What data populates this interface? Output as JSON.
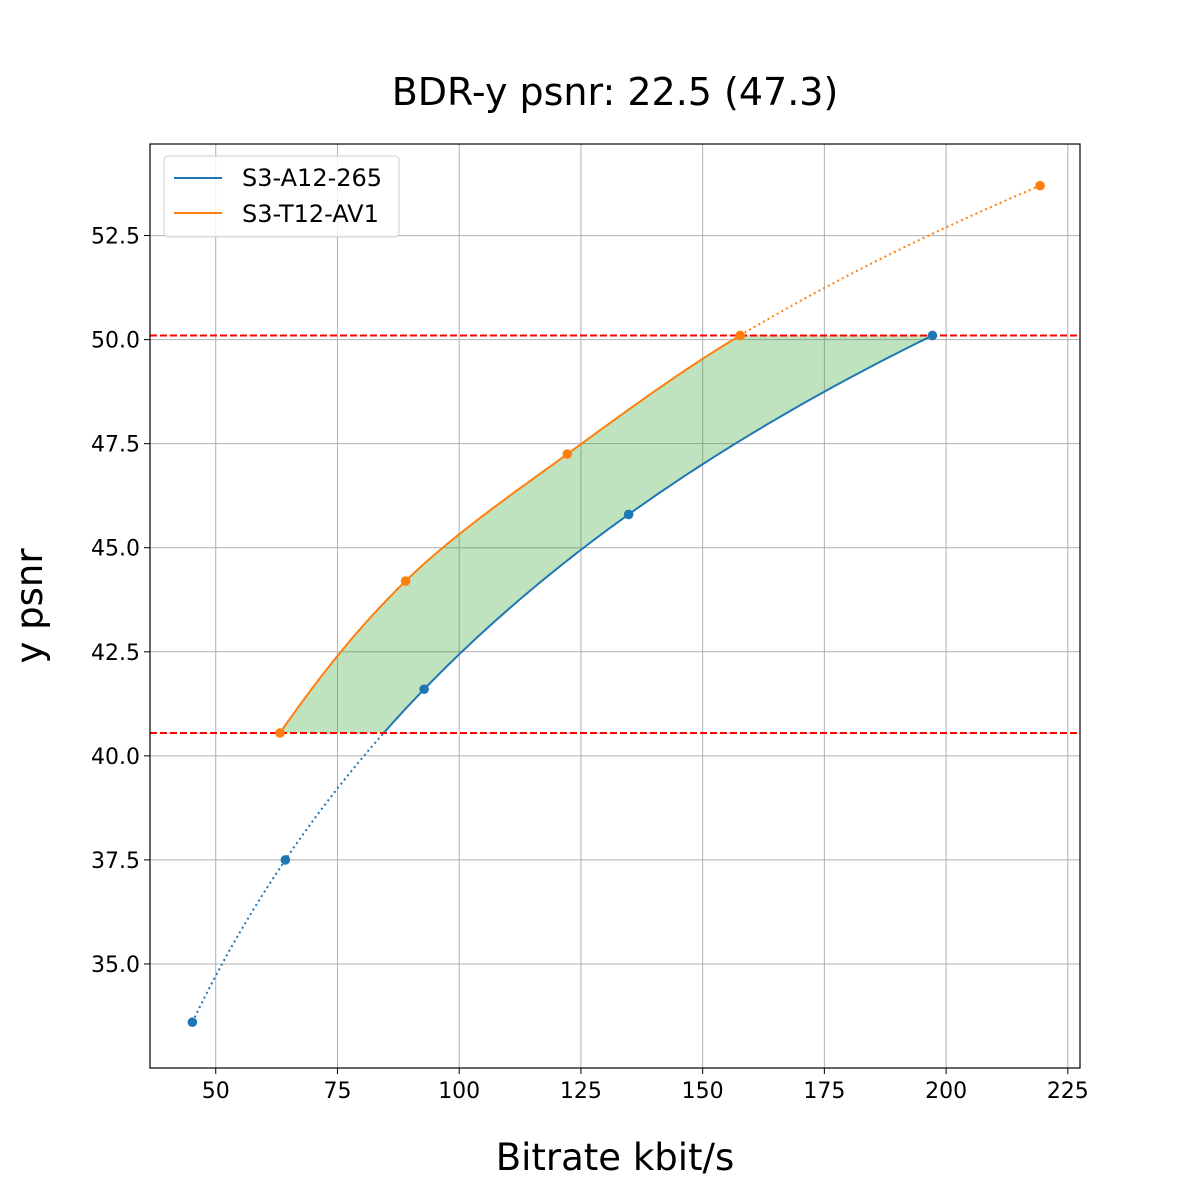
{
  "chart_data": {
    "type": "line",
    "title": "BDR-y psnr: 22.5 (47.3)",
    "xlabel": "Bitrate kbit/s",
    "ylabel": "y psnr",
    "xlim": [
      36.5,
      227.5
    ],
    "ylim": [
      32.5,
      54.7
    ],
    "xticks": [
      50,
      75,
      100,
      125,
      150,
      175,
      200,
      225
    ],
    "yticks": [
      35.0,
      37.5,
      40.0,
      42.5,
      45.0,
      47.5,
      50.0,
      52.5
    ],
    "grid": true,
    "legend_position": "top-left",
    "series": [
      {
        "name": "S3-A12-265",
        "color": "#1f77b4",
        "x": [
          45.2,
          64.3,
          92.8,
          134.8,
          197.2
        ],
        "y": [
          33.6,
          37.5,
          41.6,
          45.8,
          50.1
        ]
      },
      {
        "name": "S3-T12-AV1",
        "color": "#ff7f0e",
        "x": [
          63.2,
          89.0,
          122.2,
          157.7,
          219.3
        ],
        "y": [
          40.55,
          44.2,
          47.25,
          50.1,
          53.7
        ]
      }
    ],
    "reference_lines": {
      "y": [
        40.55,
        50.1
      ],
      "color": "#ff0000",
      "style": "dashed"
    },
    "fill": {
      "color": "#2ca02c",
      "opacity": 0.3,
      "y_range": [
        40.55,
        50.1
      ]
    }
  }
}
